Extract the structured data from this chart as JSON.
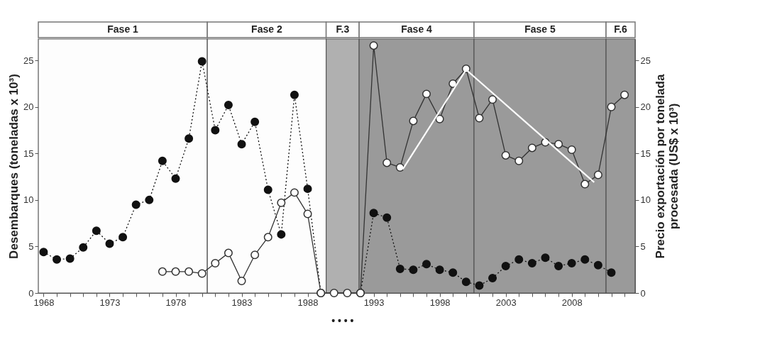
{
  "chart_data": {
    "type": "line",
    "ylabel": "Desembarques (toneladas x 10³)",
    "y2label": "Precio exportación por tonelada procesada (US$ x 10³)",
    "x": [
      1968,
      1969,
      1970,
      1971,
      1972,
      1973,
      1974,
      1975,
      1976,
      1977,
      1978,
      1979,
      1980,
      1981,
      1982,
      1983,
      1984,
      1985,
      1986,
      1987,
      1988,
      1989,
      1990,
      1991,
      1992,
      1993,
      1994,
      1995,
      1996,
      1997,
      1998,
      1999,
      2000,
      2001,
      2002,
      2003,
      2004,
      2005,
      2006,
      2007,
      2008,
      2009,
      2010,
      2011,
      2012
    ],
    "series": [
      {
        "color": "#111111",
        "line_style": "dotted",
        "marker": "circle",
        "values": [
          4.4,
          3.6,
          3.7,
          4.9,
          6.7,
          5.3,
          6.0,
          9.5,
          10.0,
          14.2,
          12.3,
          16.6,
          24.9,
          17.5,
          20.2,
          16.0,
          18.4,
          11.1,
          6.3,
          21.3,
          11.2,
          0,
          null,
          null,
          0,
          8.6,
          8.1,
          2.6,
          2.5,
          3.1,
          2.5,
          2.2,
          1.2,
          0.8,
          1.6,
          2.9,
          3.6,
          3.2,
          3.8,
          2.9,
          3.2,
          3.6,
          3.0,
          2.2,
          null
        ]
      },
      {
        "color": "#ffffff",
        "line_style": "solid",
        "marker": "circle",
        "axis": "y2",
        "values": [
          null,
          null,
          null,
          null,
          null,
          null,
          null,
          null,
          null,
          2.3,
          2.3,
          2.3,
          2.1,
          3.2,
          4.3,
          1.3,
          4.1,
          6.0,
          9.7,
          10.8,
          8.5,
          0,
          0,
          0,
          0,
          26.6,
          14.0,
          13.5,
          18.5,
          21.4,
          18.7,
          22.5,
          24.1,
          18.8,
          20.8,
          14.8,
          14.2,
          15.6,
          16.2,
          16.0,
          15.4,
          11.7,
          12.7,
          20.0,
          21.3
        ]
      },
      {
        "color": "#ffffff",
        "line_style": "solid",
        "marker": "none",
        "axis": "y2",
        "x": [
          1995.2,
          2000,
          2009.7
        ],
        "values": [
          13.3,
          24.0,
          11.9
        ]
      }
    ],
    "xlim": [
      1967.6,
      2012.8
    ],
    "xticks": [
      1968,
      {
        "value": 1969,
        "label": null
      },
      {
        "value": 1970,
        "label": null
      },
      {
        "value": 1971,
        "label": null
      },
      {
        "value": 1972,
        "label": null
      },
      1973,
      {
        "value": 1974,
        "label": null
      },
      {
        "value": 1975,
        "label": null
      },
      {
        "value": 1976,
        "label": null
      },
      {
        "value": 1977,
        "label": null
      },
      1978,
      {
        "value": 1979,
        "label": null
      },
      {
        "value": 1980,
        "label": null
      },
      {
        "value": 1981,
        "label": null
      },
      {
        "value": 1982,
        "label": null
      },
      1983,
      {
        "value": 1984,
        "label": null
      },
      {
        "value": 1985,
        "label": null
      },
      {
        "value": 1986,
        "label": null
      },
      {
        "value": 1987,
        "label": null
      },
      1988,
      {
        "value": 1989,
        "label": null
      },
      {
        "value": 1990,
        "label": null
      },
      {
        "value": 1991,
        "label": null
      },
      {
        "value": 1992,
        "label": null
      },
      1993,
      {
        "value": 1994,
        "label": null
      },
      {
        "value": 1995,
        "label": null
      },
      {
        "value": 1996,
        "label": null
      },
      {
        "value": 1997,
        "label": null
      },
      1998,
      {
        "value": 1999,
        "label": null
      },
      {
        "value": 2000,
        "label": null
      },
      {
        "value": 2001,
        "label": null
      },
      {
        "value": 2002,
        "label": null
      },
      2003,
      {
        "value": 2004,
        "label": null
      },
      {
        "value": 2005,
        "label": null
      },
      {
        "value": 2006,
        "label": null
      },
      {
        "value": 2007,
        "label": null
      },
      2008,
      {
        "value": 2009,
        "label": null
      },
      {
        "value": 2010,
        "label": null
      },
      {
        "value": 2011,
        "label": null
      },
      {
        "value": 2012,
        "label": null
      }
    ],
    "ylim": [
      0,
      27.3
    ],
    "yticks": [
      0,
      5,
      10,
      15,
      20,
      25
    ],
    "y2lim": [
      0,
      27.3
    ],
    "y2ticks": [
      0,
      5,
      10,
      15,
      20,
      25
    ],
    "bands": [
      {
        "axis": "x",
        "from": 1967.6,
        "to": 1980.4,
        "label": "Fase 1",
        "color": "#fdfdfd"
      },
      {
        "axis": "x",
        "from": 1980.4,
        "to": 1989.4,
        "label": "Fase 2",
        "color": "#fdfdfd"
      },
      {
        "axis": "x",
        "from": 1989.4,
        "to": 1991.9,
        "label": "F.3",
        "color": "#b0b0b0"
      },
      {
        "axis": "x",
        "from": 1991.9,
        "to": 2000.6,
        "label": "Fase 4",
        "color": "#9a9a9a"
      },
      {
        "axis": "x",
        "from": 2000.6,
        "to": 2010.6,
        "label": "Fase 5",
        "color": "#9a9a9a"
      },
      {
        "axis": "x",
        "from": 2010.6,
        "to": 2012.8,
        "label": "F.6",
        "color": "#9a9a9a"
      }
    ],
    "annotations": [
      "• • • •"
    ],
    "tick_labels": true
  }
}
